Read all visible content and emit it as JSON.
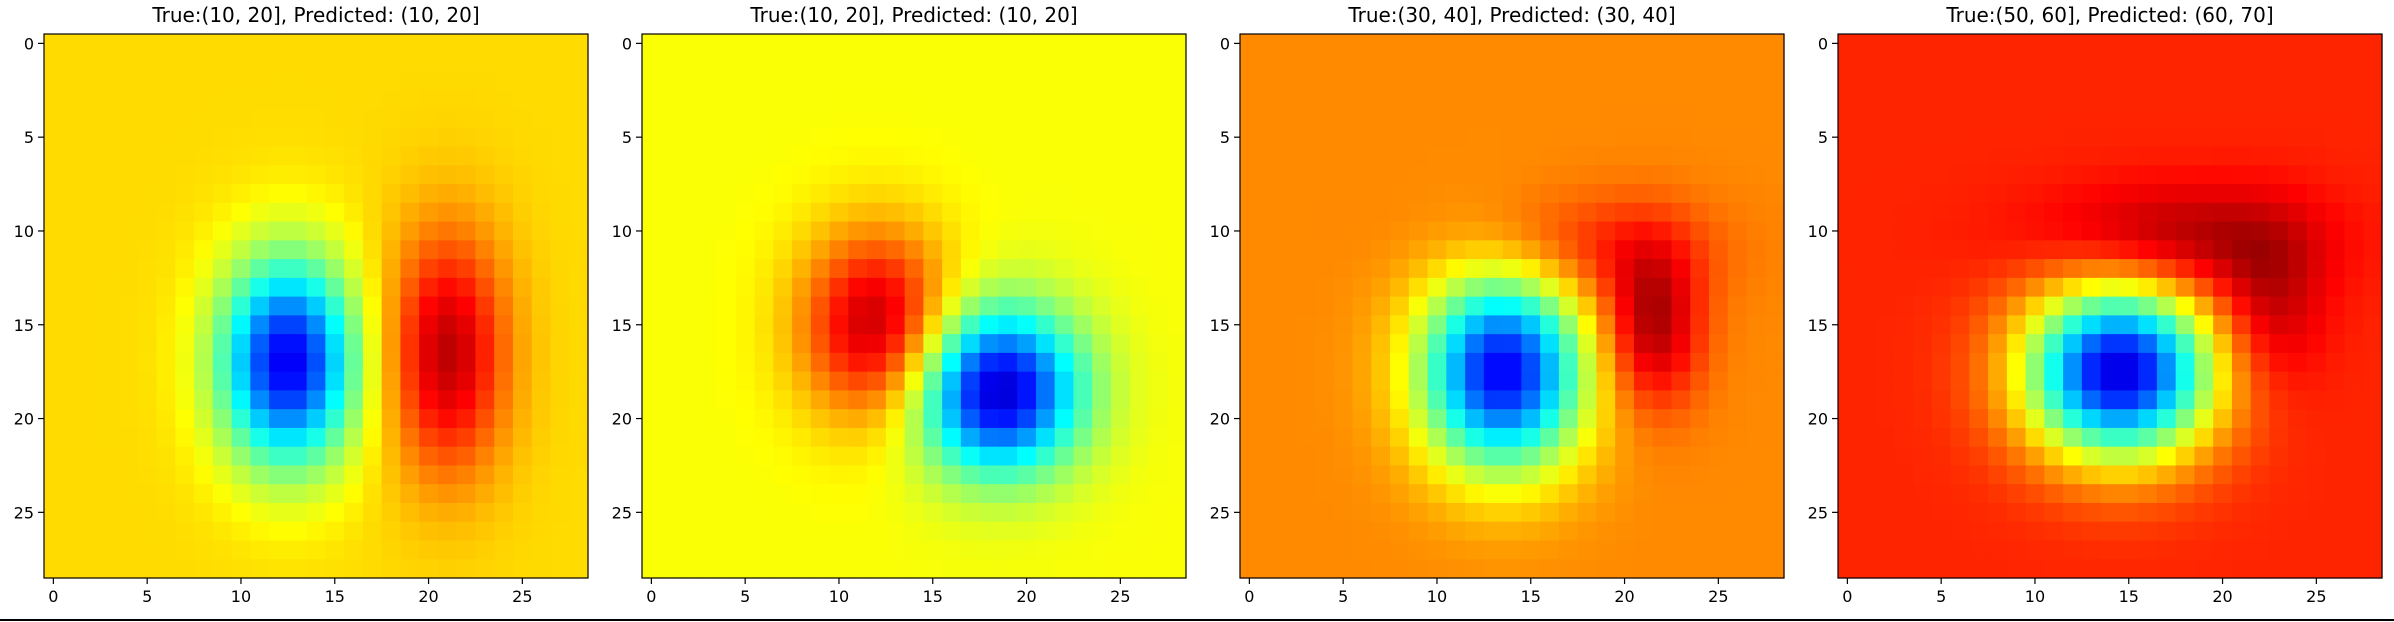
{
  "chart_data": [
    {
      "type": "heatmap",
      "title": "True:(10, 20], Predicted: (10, 20]",
      "grid_size": 29,
      "colormap": "jet",
      "grid": false,
      "xlim": [
        -0.5,
        28.5
      ],
      "ylim": [
        28.5,
        -0.5
      ],
      "xticks": [
        0,
        5,
        10,
        15,
        20,
        25
      ],
      "yticks": [
        0,
        5,
        10,
        15,
        20,
        25
      ],
      "background_level": 0.66,
      "features": [
        {
          "kind": "low",
          "cx": 12.5,
          "cy": 17.0,
          "sx": 2.5,
          "sy": 3.8,
          "amp": 0.55
        },
        {
          "kind": "high",
          "cx": 21.0,
          "cy": 16.5,
          "sx": 2.2,
          "sy": 4.5,
          "amp": 0.28
        }
      ]
    },
    {
      "type": "heatmap",
      "title": "True:(10, 20], Predicted: (10, 20]",
      "grid_size": 29,
      "colormap": "jet",
      "grid": false,
      "xlim": [
        -0.5,
        28.5
      ],
      "ylim": [
        28.5,
        -0.5
      ],
      "xticks": [
        0,
        5,
        10,
        15,
        20,
        25
      ],
      "yticks": [
        0,
        5,
        10,
        15,
        20,
        25
      ],
      "background_level": 0.62,
      "features": [
        {
          "kind": "high",
          "cx": 12.0,
          "cy": 15.0,
          "sx": 2.8,
          "sy": 3.5,
          "amp": 0.32
        },
        {
          "kind": "low",
          "cx": 18.5,
          "cy": 18.5,
          "sx": 3.0,
          "sy": 3.0,
          "amp": 0.55
        }
      ]
    },
    {
      "type": "heatmap",
      "title": "True:(30, 40], Predicted: (30, 40]",
      "grid_size": 29,
      "colormap": "jet",
      "grid": false,
      "xlim": [
        -0.5,
        28.5
      ],
      "ylim": [
        28.5,
        -0.5
      ],
      "xticks": [
        0,
        5,
        10,
        15,
        20,
        25
      ],
      "yticks": [
        0,
        5,
        10,
        15,
        20,
        25
      ],
      "background_level": 0.74,
      "features": [
        {
          "kind": "low",
          "cx": 13.5,
          "cy": 17.5,
          "sx": 3.0,
          "sy": 3.6,
          "amp": 0.62
        },
        {
          "kind": "high",
          "cx": 21.5,
          "cy": 15.0,
          "sx": 1.8,
          "sy": 3.0,
          "amp": 0.22
        },
        {
          "kind": "high",
          "cx": 18.0,
          "cy": 11.0,
          "sx": 4.5,
          "sy": 2.0,
          "amp": 0.1
        }
      ]
    },
    {
      "type": "heatmap",
      "title": "True:(50, 60], Predicted: (60, 70]",
      "grid_size": 29,
      "colormap": "jet",
      "grid": false,
      "xlim": [
        -0.5,
        28.5
      ],
      "ylim": [
        28.5,
        -0.5
      ],
      "xticks": [
        0,
        5,
        10,
        15,
        20,
        25
      ],
      "yticks": [
        0,
        5,
        10,
        15,
        20,
        25
      ],
      "background_level": 0.84,
      "features": [
        {
          "kind": "low",
          "cx": 14.5,
          "cy": 17.5,
          "sx": 3.5,
          "sy": 3.2,
          "amp": 0.75
        },
        {
          "kind": "high",
          "cx": 17.5,
          "cy": 10.5,
          "sx": 5.0,
          "sy": 2.0,
          "amp": 0.13
        },
        {
          "kind": "high",
          "cx": 22.5,
          "cy": 14.0,
          "sx": 2.0,
          "sy": 3.0,
          "amp": 0.1
        }
      ]
    }
  ]
}
